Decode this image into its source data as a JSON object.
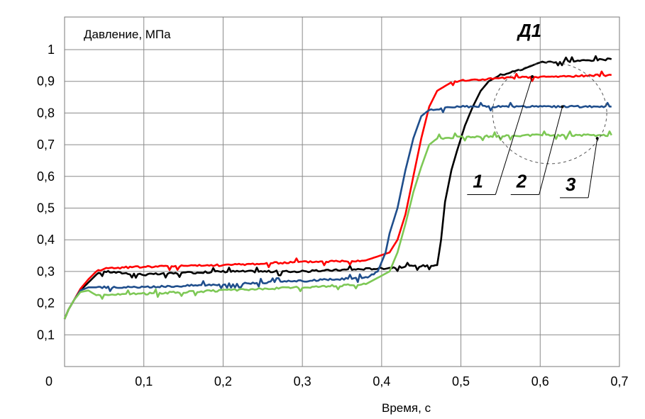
{
  "chart_data": {
    "type": "line",
    "title": "",
    "ylabel": "Давление, МПа",
    "xlabel": "Время, с",
    "xlim": [
      0,
      0.7
    ],
    "ylim": [
      0,
      1
    ],
    "grid": true,
    "x_ticks": [
      "0",
      "0,1",
      "0,2",
      "0,3",
      "0,4",
      "0,5",
      "0,6",
      "0,7"
    ],
    "y_ticks": [
      "0",
      "0,1",
      "0,2",
      "0,3",
      "0,4",
      "0,5",
      "0,6",
      "0,7",
      "0,8",
      "0,9",
      "1"
    ],
    "series": [
      {
        "color": "#000000",
        "label": "",
        "points": [
          [
            0,
            0.15
          ],
          [
            0.005,
            0.18
          ],
          [
            0.012,
            0.21
          ],
          [
            0.02,
            0.24
          ],
          [
            0.03,
            0.265
          ],
          [
            0.04,
            0.29
          ],
          [
            0.05,
            0.3
          ],
          [
            0.1,
            0.29
          ],
          [
            0.2,
            0.3
          ],
          [
            0.3,
            0.3
          ],
          [
            0.35,
            0.305
          ],
          [
            0.4,
            0.31
          ],
          [
            0.43,
            0.315
          ],
          [
            0.47,
            0.32
          ],
          [
            0.475,
            0.4
          ],
          [
            0.48,
            0.52
          ],
          [
            0.488,
            0.62
          ],
          [
            0.495,
            0.68
          ],
          [
            0.505,
            0.76
          ],
          [
            0.515,
            0.82
          ],
          [
            0.525,
            0.87
          ],
          [
            0.535,
            0.9
          ],
          [
            0.55,
            0.92
          ],
          [
            0.58,
            0.94
          ],
          [
            0.6,
            0.96
          ],
          [
            0.65,
            0.965
          ],
          [
            0.69,
            0.97
          ]
        ]
      },
      {
        "color": "#ff0000",
        "label": "",
        "points": [
          [
            0,
            0.15
          ],
          [
            0.005,
            0.18
          ],
          [
            0.012,
            0.21
          ],
          [
            0.02,
            0.245
          ],
          [
            0.03,
            0.275
          ],
          [
            0.04,
            0.3
          ],
          [
            0.05,
            0.31
          ],
          [
            0.1,
            0.315
          ],
          [
            0.2,
            0.32
          ],
          [
            0.3,
            0.33
          ],
          [
            0.38,
            0.335
          ],
          [
            0.41,
            0.36
          ],
          [
            0.42,
            0.4
          ],
          [
            0.43,
            0.48
          ],
          [
            0.44,
            0.6
          ],
          [
            0.45,
            0.72
          ],
          [
            0.46,
            0.82
          ],
          [
            0.47,
            0.87
          ],
          [
            0.49,
            0.9
          ],
          [
            0.55,
            0.91
          ],
          [
            0.62,
            0.915
          ],
          [
            0.69,
            0.92
          ]
        ]
      },
      {
        "color": "#1f4e8c",
        "label": "",
        "points": [
          [
            0,
            0.15
          ],
          [
            0.005,
            0.18
          ],
          [
            0.012,
            0.21
          ],
          [
            0.02,
            0.24
          ],
          [
            0.03,
            0.25
          ],
          [
            0.1,
            0.25
          ],
          [
            0.2,
            0.26
          ],
          [
            0.3,
            0.27
          ],
          [
            0.38,
            0.28
          ],
          [
            0.395,
            0.3
          ],
          [
            0.405,
            0.36
          ],
          [
            0.41,
            0.42
          ],
          [
            0.42,
            0.5
          ],
          [
            0.43,
            0.62
          ],
          [
            0.44,
            0.72
          ],
          [
            0.45,
            0.79
          ],
          [
            0.46,
            0.81
          ],
          [
            0.5,
            0.82
          ],
          [
            0.6,
            0.82
          ],
          [
            0.69,
            0.82
          ]
        ]
      },
      {
        "color": "#7dc855",
        "label": "",
        "points": [
          [
            0,
            0.15
          ],
          [
            0.005,
            0.18
          ],
          [
            0.012,
            0.21
          ],
          [
            0.02,
            0.235
          ],
          [
            0.03,
            0.24
          ],
          [
            0.04,
            0.225
          ],
          [
            0.1,
            0.23
          ],
          [
            0.2,
            0.24
          ],
          [
            0.3,
            0.25
          ],
          [
            0.38,
            0.26
          ],
          [
            0.41,
            0.3
          ],
          [
            0.42,
            0.36
          ],
          [
            0.43,
            0.45
          ],
          [
            0.44,
            0.55
          ],
          [
            0.45,
            0.63
          ],
          [
            0.46,
            0.7
          ],
          [
            0.47,
            0.72
          ],
          [
            0.5,
            0.725
          ],
          [
            0.6,
            0.73
          ],
          [
            0.69,
            0.73
          ]
        ]
      }
    ],
    "annotations": [
      {
        "text": "Д1",
        "x": 0.572,
        "y": 1.04
      },
      {
        "text": "1",
        "x": 0.515,
        "y": 0.565,
        "target": [
          0.59,
          0.915
        ]
      },
      {
        "text": "2",
        "x": 0.57,
        "y": 0.565,
        "target": [
          0.628,
          0.82
        ]
      },
      {
        "text": "3",
        "x": 0.632,
        "y": 0.555,
        "target": [
          0.672,
          0.72
        ]
      }
    ],
    "highlight_circle": {
      "x_center": 0.612,
      "y_center": 0.8,
      "rx_data": 0.072,
      "ry_data": 0.16
    }
  }
}
